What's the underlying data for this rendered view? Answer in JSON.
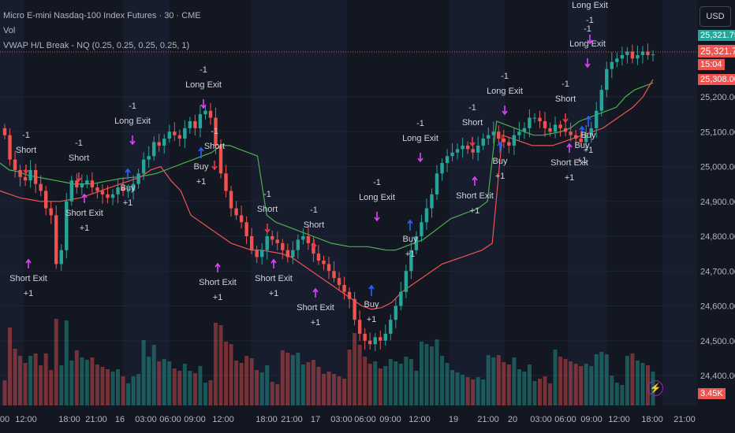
{
  "header": {
    "title": "Micro E-mini Nasdaq-100 Index Futures · 30 · CME",
    "volume_label": "Vol",
    "indicator": "VWAP H/L Break - NQ (0.25, 0.25, 0.25, 0.25, 1)"
  },
  "currency_button": "USD",
  "price_scale": {
    "ticks": [
      "25,200.00",
      "25,100.00",
      "25,000.00",
      "24,900.00",
      "24,800.00",
      "24,700.00",
      "24,600.00",
      "24,500.00",
      "24,400.00"
    ],
    "tag_top": "25,321.75",
    "tag_current": "25,321.75",
    "tag_countdown": "15:04",
    "tag_low": "25,308.00",
    "volume_tag": "3.45K"
  },
  "time_axis": {
    "labels": [
      "00",
      "12:00",
      "18:00",
      "21:00",
      "16",
      "03:00",
      "06:00",
      "09:00",
      "12:00",
      "18:00",
      "21:00",
      "17",
      "03:00",
      "06:00",
      "09:00",
      "12:00",
      "19",
      "21:00",
      "20",
      "03:00",
      "06:00",
      "09:00",
      "12:00",
      "18:00",
      "21:00"
    ]
  },
  "colors": {
    "background": "#131722",
    "bull": "#26a69a",
    "bear": "#ef5350",
    "upper_band": "#4caf50",
    "lower_band": "#ef5350",
    "long_marker": "#2962ff",
    "exit_marker": "#e040fb",
    "short_marker": "#f23645"
  },
  "chart_data": {
    "type": "candlestick",
    "symbol": "Micro E-mini Nasdaq-100 Index Futures",
    "interval": "30",
    "exchange": "CME",
    "ylim": [
      24350,
      25380
    ],
    "current_price": 25321.75,
    "close_series": [
      25090,
      25020,
      24990,
      24970,
      24960,
      24990,
      24950,
      24930,
      24880,
      24860,
      24720,
      24760,
      24900,
      24960,
      24940,
      24950,
      24960,
      24940,
      24930,
      24920,
      24910,
      24920,
      24940,
      24930,
      24930,
      24950,
      24980,
      25020,
      25030,
      25070,
      25060,
      25080,
      25100,
      25090,
      25080,
      25110,
      25130,
      25110,
      25150,
      25160,
      25140,
      25060,
      24980,
      24930,
      24880,
      24860,
      24840,
      24800,
      24760,
      24740,
      24760,
      24800,
      24790,
      24780,
      24760,
      24740,
      24760,
      24790,
      24800,
      24780,
      24750,
      24730,
      24720,
      24700,
      24680,
      24660,
      24640,
      24620,
      24560,
      24520,
      24500,
      24490,
      24510,
      24500,
      24520,
      24560,
      24600,
      24640,
      24700,
      24760,
      24800,
      24840,
      24880,
      24920,
      24980,
      25010,
      25030,
      25040,
      25050,
      25060,
      25050,
      25040,
      25060,
      25080,
      25090,
      25100,
      25080,
      25070,
      25060,
      25090,
      25100,
      25110,
      25140,
      25140,
      25130,
      25110,
      25100,
      25120,
      25110,
      25100,
      25090,
      25080,
      25070,
      25090,
      25110,
      25160,
      25220,
      25280,
      25300,
      25310,
      25320,
      25330,
      25310,
      25320,
      25330,
      25320,
      25321.75
    ],
    "upper_band": [
      25010,
      24990,
      24985,
      24975,
      24970,
      24965,
      24960,
      24955,
      24950,
      24950,
      24950,
      24955,
      24960,
      24965,
      24968,
      24970,
      24975,
      24980,
      24990,
      25000,
      25010,
      25020,
      25030,
      25040,
      25060,
      25060,
      25050,
      25040,
      25030,
      24860,
      24840,
      24830,
      24820,
      24810,
      24800,
      24790,
      24780,
      24775,
      24770,
      24770,
      24770,
      24765,
      24760,
      24760,
      24770,
      24780,
      24790,
      24810,
      24830,
      24850,
      24860,
      24870,
      24880,
      24900,
      25130,
      25120,
      25110,
      25100,
      25090,
      25090,
      25095,
      25100,
      25110,
      25130,
      25140,
      25150,
      25160,
      25170,
      25200,
      25220,
      25230,
      25240
    ],
    "lower_band": [
      24930,
      24920,
      24910,
      24905,
      24900,
      24900,
      24900,
      24905,
      24910,
      24920,
      24930,
      24940,
      24950,
      24960,
      24970,
      24990,
      25000,
      24960,
      24930,
      24860,
      24840,
      24820,
      24800,
      24780,
      24770,
      24760,
      24760,
      24755,
      24750,
      24740,
      24720,
      24700,
      24680,
      24660,
      24640,
      24620,
      24600,
      24590,
      24595,
      24610,
      24640,
      24660,
      24680,
      24700,
      24720,
      24730,
      24740,
      24750,
      24760,
      24780,
      25090,
      25080,
      25070,
      25060,
      25060,
      25060,
      25070,
      25080,
      25090,
      25100,
      25110,
      25130,
      25150,
      25170,
      25200,
      25250
    ],
    "signals": [
      {
        "label": "-1\nShort",
        "type": "short"
      },
      {
        "label": "Short Exit\n+1",
        "type": "short_exit"
      },
      {
        "label": "-1\nShort",
        "type": "short"
      },
      {
        "label": "Short Exit\n+1",
        "type": "short_exit"
      },
      {
        "label": "Buy\n+1",
        "type": "buy"
      },
      {
        "label": "-1\nLong Exit",
        "type": "long_exit"
      },
      {
        "label": "-1\nLong Exit",
        "type": "long_exit"
      },
      {
        "label": "-1\nShort",
        "type": "short"
      },
      {
        "label": "Buy\n+1",
        "type": "buy"
      },
      {
        "label": "Short Exit\n+1",
        "type": "short_exit"
      },
      {
        "label": "-1\nShort",
        "type": "short"
      },
      {
        "label": "Short Exit\n+1",
        "type": "short_exit"
      },
      {
        "label": "-1\nShort",
        "type": "short"
      },
      {
        "label": "Short Exit\n+1",
        "type": "short_exit"
      },
      {
        "label": "Buy\n+1",
        "type": "buy"
      },
      {
        "label": "-1\nLong Exit",
        "type": "long_exit"
      },
      {
        "label": "Buy\n+1",
        "type": "buy"
      },
      {
        "label": "-1\nLong Exit",
        "type": "long_exit"
      },
      {
        "label": "-1\nShort",
        "type": "short"
      },
      {
        "label": "Short Exit\n+1",
        "type": "short_exit"
      },
      {
        "label": "Buy\n+1",
        "type": "buy"
      },
      {
        "label": "-1\nLong Exit",
        "type": "long_exit"
      },
      {
        "label": "-1\nShort",
        "type": "short"
      },
      {
        "label": "Buy\n+1",
        "type": "buy"
      },
      {
        "label": "Short Exit\n+1",
        "type": "short_exit"
      },
      {
        "label": "Buy\n+1",
        "type": "buy"
      },
      {
        "label": "-1\nLong Exit",
        "type": "long_exit"
      },
      {
        "label": "Long Exit\n-1",
        "type": "long_exit"
      }
    ]
  }
}
